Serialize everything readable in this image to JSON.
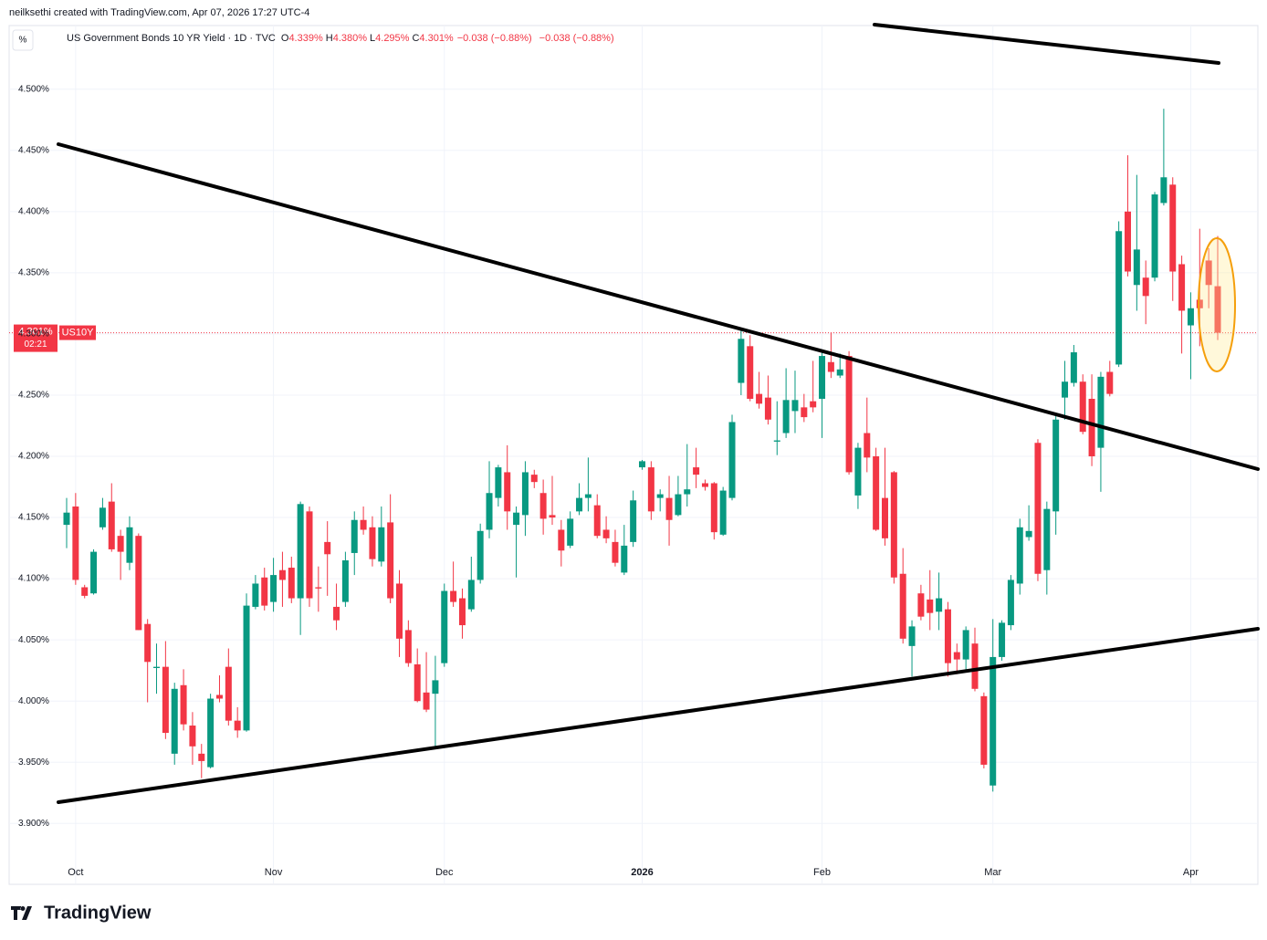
{
  "header": {
    "credit": "neilksethi created with TradingView.com, Apr 07, 2026 17:27 UTC-4",
    "unit_button": "%",
    "instrument": "US Government Bonds 10 YR Yield · 1D · TVC",
    "legend": [
      {
        "key": "O",
        "value": "4.339%"
      },
      {
        "key": "H",
        "value": "4.380%"
      },
      {
        "key": "L",
        "value": "4.295%"
      },
      {
        "key": "C",
        "value": "4.301%"
      }
    ],
    "change": "−0.038 (−0.88%)",
    "change2": "−0.038 (−0.88%)",
    "price_tag": "4.301%",
    "countdown": "02:21",
    "symbol": "US10Y",
    "brand": "TradingView"
  },
  "chart_data": {
    "type": "candlestick",
    "up_color": "#089981",
    "down_color": "#f23645",
    "grid": true,
    "ylim": [
      3.851,
      4.552
    ],
    "yticks": [
      {
        "value": 3.9,
        "label": "3.900%"
      },
      {
        "value": 3.95,
        "label": "3.950%"
      },
      {
        "value": 4.0,
        "label": "4.000%"
      },
      {
        "value": 4.05,
        "label": "4.050%"
      },
      {
        "value": 4.1,
        "label": "4.100%"
      },
      {
        "value": 4.15,
        "label": "4.150%"
      },
      {
        "value": 4.2,
        "label": "4.200%"
      },
      {
        "value": 4.25,
        "label": "4.250%"
      },
      {
        "value": 4.3,
        "label": "4.300%"
      },
      {
        "value": 4.35,
        "label": "4.350%"
      },
      {
        "value": 4.4,
        "label": "4.400%"
      },
      {
        "value": 4.45,
        "label": "4.450%"
      },
      {
        "value": 4.5,
        "label": "4.500%"
      }
    ],
    "categories": [
      null,
      "Oct",
      null,
      null,
      null,
      null,
      null,
      null,
      null,
      null,
      null,
      null,
      null,
      null,
      null,
      null,
      null,
      null,
      null,
      null,
      null,
      null,
      null,
      "Nov",
      null,
      null,
      null,
      null,
      null,
      null,
      null,
      null,
      null,
      null,
      null,
      null,
      null,
      null,
      null,
      null,
      null,
      null,
      "Dec",
      null,
      null,
      null,
      null,
      null,
      null,
      null,
      null,
      null,
      null,
      null,
      null,
      null,
      null,
      null,
      null,
      null,
      null,
      null,
      null,
      null,
      "2026",
      null,
      null,
      null,
      null,
      null,
      null,
      null,
      null,
      null,
      null,
      null,
      null,
      null,
      null,
      null,
      null,
      null,
      null,
      null,
      "Feb",
      null,
      null,
      null,
      null,
      null,
      null,
      null,
      null,
      null,
      null,
      null,
      null,
      null,
      null,
      null,
      null,
      null,
      null,
      "Mar",
      null,
      null,
      null,
      null,
      null,
      null,
      null,
      null,
      null,
      null,
      null,
      null,
      null,
      null,
      null,
      null,
      null,
      null,
      null,
      null,
      null,
      "Apr",
      null,
      null,
      null
    ],
    "open": [
      4.144,
      4.159,
      4.093,
      4.088,
      4.142,
      4.163,
      4.135,
      4.113,
      4.135,
      4.063,
      4.027,
      4.028,
      3.957,
      4.013,
      3.98,
      3.957,
      3.946,
      4.005,
      4.028,
      3.984,
      3.976,
      4.077,
      4.101,
      4.081,
      4.107,
      4.109,
      4.084,
      4.155,
      4.093,
      4.13,
      4.077,
      4.081,
      4.121,
      4.148,
      4.142,
      4.114,
      4.146,
      4.096,
      4.058,
      4.03,
      4.007,
      4.006,
      4.031,
      4.09,
      4.084,
      4.075,
      4.099,
      4.14,
      4.166,
      4.187,
      4.144,
      4.152,
      4.185,
      4.17,
      4.152,
      4.14,
      4.127,
      4.155,
      4.166,
      4.16,
      4.14,
      4.13,
      4.105,
      4.13,
      4.191,
      4.191,
      4.166,
      4.166,
      4.152,
      4.169,
      4.191,
      4.178,
      4.178,
      4.136,
      4.166,
      4.26,
      4.29,
      4.251,
      4.248,
      4.212,
      4.219,
      4.237,
      4.24,
      4.245,
      4.247,
      4.277,
      4.266,
      4.282,
      4.168,
      4.219,
      4.2,
      4.166,
      4.187,
      4.104,
      4.045,
      4.088,
      4.083,
      4.073,
      4.075,
      4.04,
      4.034,
      4.047,
      4.004,
      3.931,
      4.036,
      4.062,
      4.096,
      4.134,
      4.211,
      4.107,
      4.155,
      4.248,
      4.26,
      4.261,
      4.247,
      4.207,
      4.269,
      4.275,
      4.4,
      4.34,
      4.346,
      4.346,
      4.407,
      4.422,
      4.357,
      4.307,
      4.328,
      4.36,
      4.339
    ],
    "high": [
      4.166,
      4.17,
      4.095,
      4.124,
      4.166,
      4.178,
      4.14,
      4.151,
      4.137,
      4.067,
      4.047,
      4.049,
      4.015,
      4.026,
      3.991,
      3.965,
      4.006,
      4.021,
      4.043,
      3.995,
      4.088,
      4.103,
      4.109,
      4.117,
      4.122,
      4.118,
      4.163,
      4.159,
      4.11,
      4.147,
      4.096,
      4.122,
      4.155,
      4.159,
      4.151,
      4.159,
      4.169,
      4.107,
      4.066,
      4.043,
      4.04,
      4.037,
      4.096,
      4.114,
      4.092,
      4.118,
      4.145,
      4.196,
      4.193,
      4.209,
      4.159,
      4.196,
      4.189,
      4.181,
      4.184,
      4.148,
      4.155,
      4.178,
      4.199,
      4.169,
      4.151,
      4.14,
      4.144,
      4.172,
      4.197,
      4.196,
      4.173,
      4.184,
      4.184,
      4.21,
      4.207,
      4.181,
      4.179,
      4.175,
      4.234,
      4.305,
      4.299,
      4.269,
      4.266,
      4.245,
      4.272,
      4.27,
      4.251,
      4.278,
      4.286,
      4.301,
      4.284,
      4.286,
      4.211,
      4.248,
      4.207,
      4.207,
      4.188,
      4.125,
      4.066,
      4.095,
      4.107,
      4.105,
      4.081,
      4.047,
      4.061,
      4.06,
      4.007,
      4.067,
      4.066,
      4.103,
      4.149,
      4.16,
      4.214,
      4.163,
      4.234,
      4.278,
      4.291,
      4.267,
      4.267,
      4.269,
      4.278,
      4.392,
      4.446,
      4.43,
      4.36,
      4.416,
      4.484,
      4.428,
      4.364,
      4.334,
      4.386,
      4.37,
      4.38
    ],
    "low": [
      4.125,
      4.095,
      4.084,
      4.087,
      4.14,
      4.122,
      4.099,
      4.107,
      4.058,
      3.999,
      4.006,
      3.969,
      3.948,
      3.976,
      3.948,
      3.937,
      3.945,
      3.999,
      3.98,
      3.97,
      3.975,
      4.075,
      4.074,
      4.073,
      4.077,
      4.08,
      4.054,
      4.077,
      4.073,
      4.086,
      4.058,
      4.077,
      4.103,
      4.136,
      4.11,
      4.11,
      4.08,
      4.036,
      4.028,
      3.999,
      3.991,
      3.961,
      4.028,
      4.077,
      4.051,
      4.073,
      4.096,
      4.133,
      4.159,
      4.14,
      4.101,
      4.135,
      4.174,
      4.136,
      4.144,
      4.11,
      4.125,
      4.152,
      4.155,
      4.133,
      4.129,
      4.11,
      4.103,
      4.126,
      4.189,
      4.148,
      4.155,
      4.127,
      4.151,
      4.159,
      4.174,
      4.172,
      4.132,
      4.135,
      4.164,
      4.25,
      4.245,
      4.239,
      4.226,
      4.201,
      4.215,
      4.219,
      4.228,
      4.236,
      4.215,
      4.264,
      4.264,
      4.185,
      4.157,
      4.187,
      4.139,
      4.127,
      4.096,
      4.047,
      4.02,
      4.066,
      4.058,
      4.058,
      4.02,
      4.022,
      4.025,
      4.008,
      3.945,
      3.926,
      4.033,
      4.058,
      4.087,
      4.131,
      4.098,
      4.087,
      4.136,
      4.23,
      4.257,
      4.218,
      4.192,
      4.171,
      4.249,
      4.273,
      4.347,
      4.319,
      4.308,
      4.343,
      4.405,
      4.327,
      4.284,
      4.263,
      4.29,
      4.321,
      4.295
    ],
    "close": [
      4.154,
      4.099,
      4.086,
      4.122,
      4.158,
      4.124,
      4.122,
      4.142,
      4.058,
      4.032,
      4.028,
      3.974,
      4.01,
      3.981,
      3.963,
      3.951,
      4.002,
      4.002,
      3.984,
      3.976,
      4.078,
      4.096,
      4.078,
      4.103,
      4.099,
      4.084,
      4.161,
      4.084,
      4.092,
      4.12,
      4.066,
      4.115,
      4.148,
      4.14,
      4.116,
      4.142,
      4.084,
      4.051,
      4.031,
      4.0,
      3.993,
      4.017,
      4.09,
      4.081,
      4.062,
      4.099,
      4.139,
      4.17,
      4.191,
      4.155,
      4.154,
      4.187,
      4.179,
      4.149,
      4.15,
      4.123,
      4.149,
      4.166,
      4.169,
      4.135,
      4.133,
      4.113,
      4.127,
      4.164,
      4.196,
      4.155,
      4.169,
      4.148,
      4.169,
      4.173,
      4.185,
      4.175,
      4.138,
      4.172,
      4.228,
      4.296,
      4.247,
      4.243,
      4.23,
      4.213,
      4.246,
      4.246,
      4.232,
      4.24,
      4.282,
      4.269,
      4.271,
      4.187,
      4.207,
      4.199,
      4.14,
      4.133,
      4.101,
      4.051,
      4.061,
      4.069,
      4.072,
      4.084,
      4.031,
      4.034,
      4.058,
      4.01,
      3.948,
      4.036,
      4.064,
      4.099,
      4.142,
      4.139,
      4.104,
      4.157,
      4.23,
      4.261,
      4.285,
      4.22,
      4.2,
      4.265,
      4.251,
      4.384,
      4.351,
      4.369,
      4.331,
      4.414,
      4.428,
      4.351,
      4.319,
      4.321,
      4.321,
      4.34,
      4.301
    ]
  }
}
